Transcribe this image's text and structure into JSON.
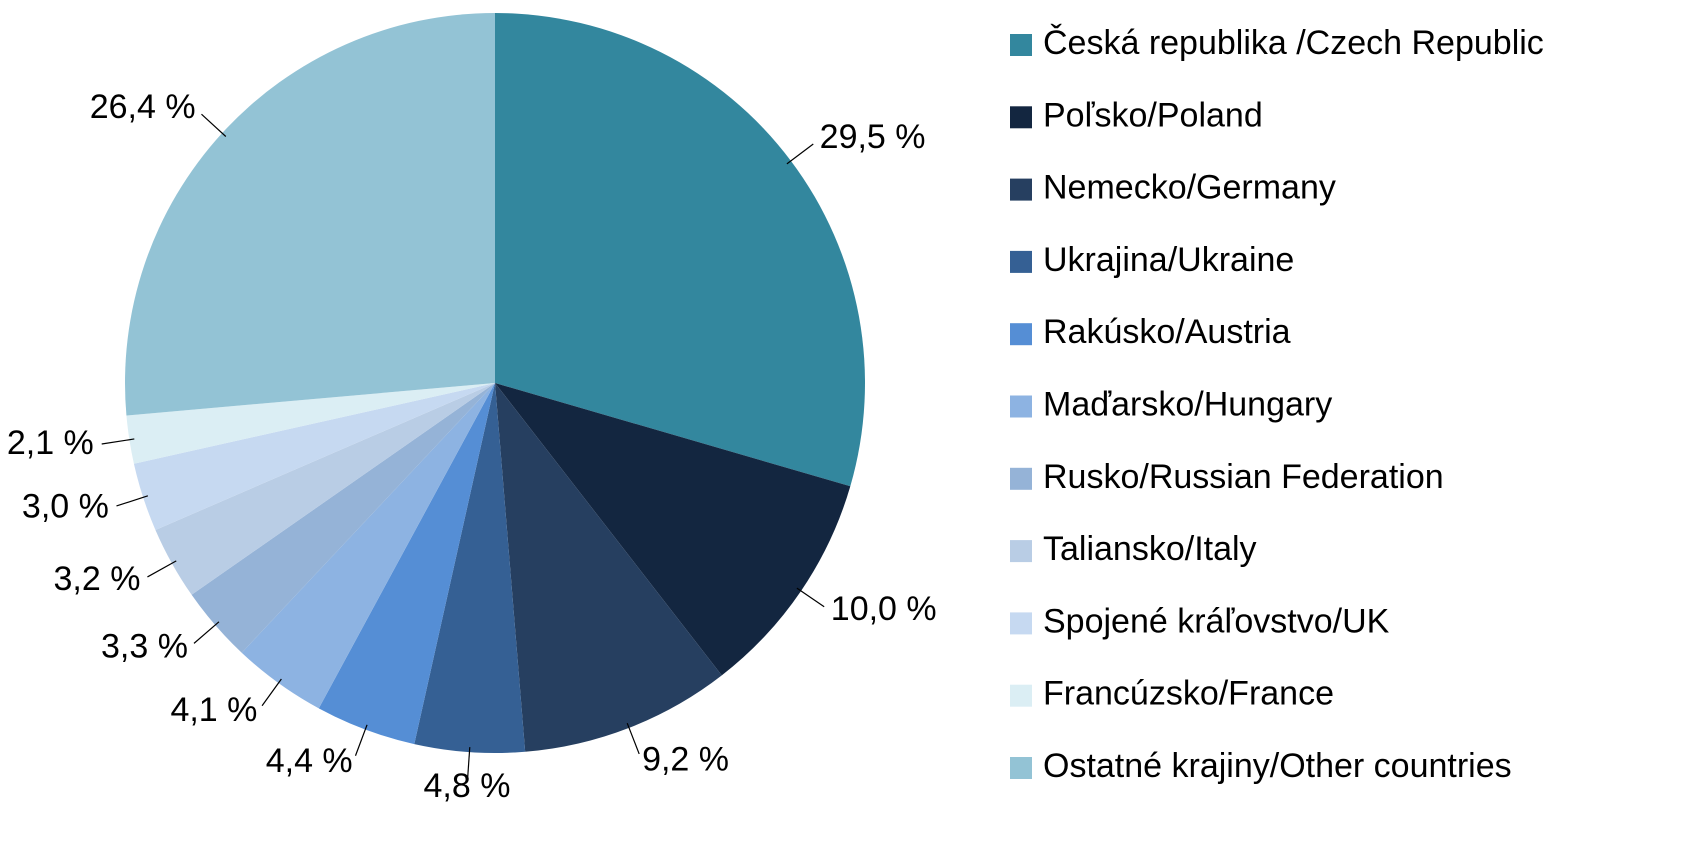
{
  "chart_data": {
    "type": "pie",
    "categories": [
      "Česká republika /Czech Republic",
      "Poľsko/Poland",
      "Nemecko/Germany",
      "Ukrajina/Ukraine",
      "Rakúsko/Austria",
      "Maďarsko/Hungary",
      "Rusko/Russian Federation",
      "Taliansko/Italy",
      "Spojené kráľovstvo/UK",
      "Francúzsko/France",
      "Ostatné krajiny/Other countries"
    ],
    "values": [
      29.5,
      10.0,
      9.2,
      4.8,
      4.4,
      4.1,
      3.3,
      3.2,
      3.0,
      2.1,
      26.4
    ],
    "value_labels": [
      "29,5 %",
      "10,0 %",
      "9,2 %",
      "4,8 %",
      "4,4 %",
      "4,1 %",
      "3,3 %",
      "3,2 %",
      "3,0 %",
      "2,1 %",
      "26,4 %"
    ],
    "colors": [
      "#33879e",
      "#132640",
      "#263f60",
      "#356094",
      "#558ed5",
      "#8db3e2",
      "#95b3d7",
      "#b9cde5",
      "#c6d9f1",
      "#dbeef4",
      "#93c3d5"
    ],
    "legend": "right"
  }
}
